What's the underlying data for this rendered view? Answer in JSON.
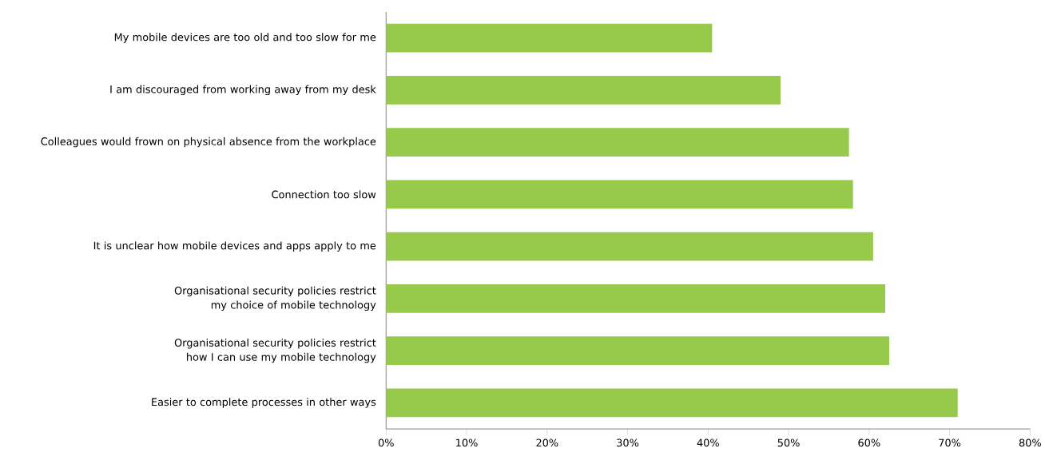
{
  "chart_data": {
    "type": "bar",
    "orientation": "horizontal",
    "categories": [
      "My mobile devices are too old and too slow for me",
      "I am discouraged from working away from my desk",
      "Colleagues would frown on physical absence from the workplace",
      "Connection too slow",
      "It is unclear how mobile devices and apps apply to me",
      "Organisational security policies restrict my choice of mobile technology",
      "Organisational security policies restrict how I can use my mobile technology",
      "Easier to complete processes in other ways"
    ],
    "values": [
      40.5,
      49,
      57.5,
      58,
      60.5,
      62,
      62.5,
      71
    ],
    "color": "#97c94b",
    "xlim": [
      0,
      80
    ],
    "xticks": [
      {
        "value": 0,
        "label": "0%"
      },
      {
        "value": 10,
        "label": "10%"
      },
      {
        "value": 20,
        "label": "20%"
      },
      {
        "value": 30,
        "label": "30%"
      },
      {
        "value": 40,
        "label": "40%"
      },
      {
        "value": 50,
        "label": "50%"
      },
      {
        "value": 60,
        "label": "60%"
      },
      {
        "value": 70,
        "label": "70%"
      },
      {
        "value": 80,
        "label": "80%"
      }
    ],
    "grid": false
  }
}
